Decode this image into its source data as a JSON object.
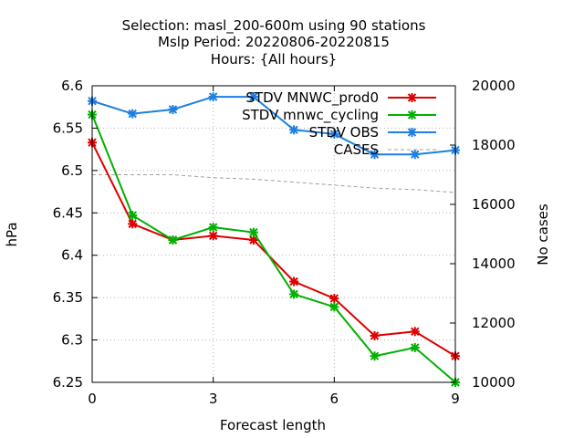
{
  "chart_data": {
    "type": "line",
    "title_lines": [
      "Selection: masl_200-600m using    90 stations",
      "Mslp   Period: 20220806-20220815",
      "Hours: {All hours}"
    ],
    "xlabel": "Forecast length",
    "ylabel": "hPa",
    "y2label": "No cases",
    "xlim": [
      0,
      9
    ],
    "ylim": [
      6.25,
      6.6
    ],
    "y2lim": [
      10000,
      20000
    ],
    "x_ticks": [
      0,
      3,
      6,
      9
    ],
    "y_ticks": [
      6.25,
      6.3,
      6.35,
      6.4,
      6.45,
      6.5,
      6.55,
      6.6
    ],
    "y_tick_labels": [
      "6.25",
      "6.3",
      "6.35",
      "6.4",
      "6.45",
      "6.5",
      "6.55",
      "6.6"
    ],
    "y2_ticks": [
      10000,
      12000,
      14000,
      16000,
      18000,
      20000
    ],
    "grid": true,
    "legend_position": "top-right",
    "x": [
      0,
      1,
      2,
      3,
      4,
      5,
      6,
      7,
      8,
      9
    ],
    "series": [
      {
        "name": "STDV MNWC_prod0",
        "color": "#dd0000",
        "axis": "left",
        "style": "line-marker",
        "values": [
          6.533,
          6.437,
          6.418,
          6.423,
          6.418,
          6.369,
          6.349,
          6.305,
          6.31,
          6.281
        ]
      },
      {
        "name": "STDV mnwc_cycling",
        "color": "#00b000",
        "axis": "left",
        "style": "line-marker",
        "values": [
          6.566,
          6.447,
          6.418,
          6.433,
          6.427,
          6.354,
          6.339,
          6.281,
          6.291,
          6.25
        ]
      },
      {
        "name": "STDV OBS",
        "color": "#1e7fe0",
        "axis": "left",
        "style": "line-marker",
        "values": [
          6.582,
          6.567,
          6.572,
          6.587,
          6.587,
          6.548,
          6.543,
          6.519,
          6.519,
          6.524
        ]
      },
      {
        "name": "CASES",
        "color": "#a0a0a0",
        "axis": "right",
        "style": "dashed",
        "values": [
          17000,
          17000,
          17000,
          16900,
          16850,
          16750,
          16650,
          16550,
          16500,
          16400
        ]
      }
    ]
  }
}
